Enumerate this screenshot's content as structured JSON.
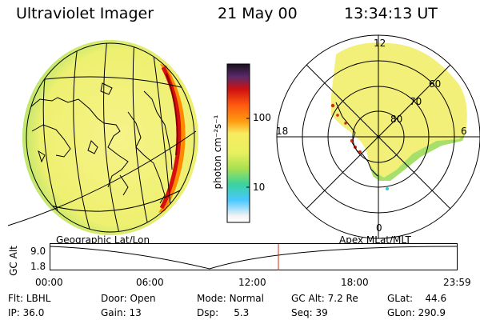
{
  "header": {
    "instrument": "Ultraviolet Imager",
    "date": "21 May 00",
    "time": "13:34:13 UT"
  },
  "colorbar": {
    "unit_label": "photon cm⁻²s⁻¹",
    "ticks": [
      "100",
      "10"
    ]
  },
  "polar": {
    "mlt_labels": {
      "top": "12",
      "left": "18",
      "right": "6",
      "bottom": "0"
    },
    "lat_labels": [
      "60",
      "70",
      "80"
    ]
  },
  "panel_labels": {
    "left": "Geographic Lat/Lon",
    "right": "Apex MLat/MLT"
  },
  "timeline": {
    "axis_title": "GC Alt",
    "y_ticks": [
      "9.0",
      "1.8"
    ],
    "x_ticks": [
      "00:00",
      "06:00",
      "12:00",
      "18:00",
      "23:59"
    ],
    "current_marker_time": "13:34"
  },
  "info": {
    "filter_label": "Flt:",
    "filter_value": "LBHL",
    "door_label": "Door:",
    "door_value": "Open",
    "mode_label": "Mode:",
    "mode_value": "Normal",
    "gcalt_label": "GC Alt:",
    "gcalt_value": "7.2 Re",
    "glat_label": "GLat:",
    "glat_value": "44.6",
    "ip_label": "IP:",
    "ip_value": "36.0",
    "gain_label": "Gain:",
    "gain_value": "13",
    "dsp_label": "Dsp:",
    "dsp_value": "5.3",
    "seq_label": "Seq:",
    "seq_value": "39",
    "glon_label": "GLon:",
    "glon_value": "290.9"
  },
  "colors": {
    "dayglow": "#f4f27a",
    "dayglow_edge": "#a8e070",
    "aurora_edge": "#d42a10",
    "marker": "#d42a10"
  }
}
